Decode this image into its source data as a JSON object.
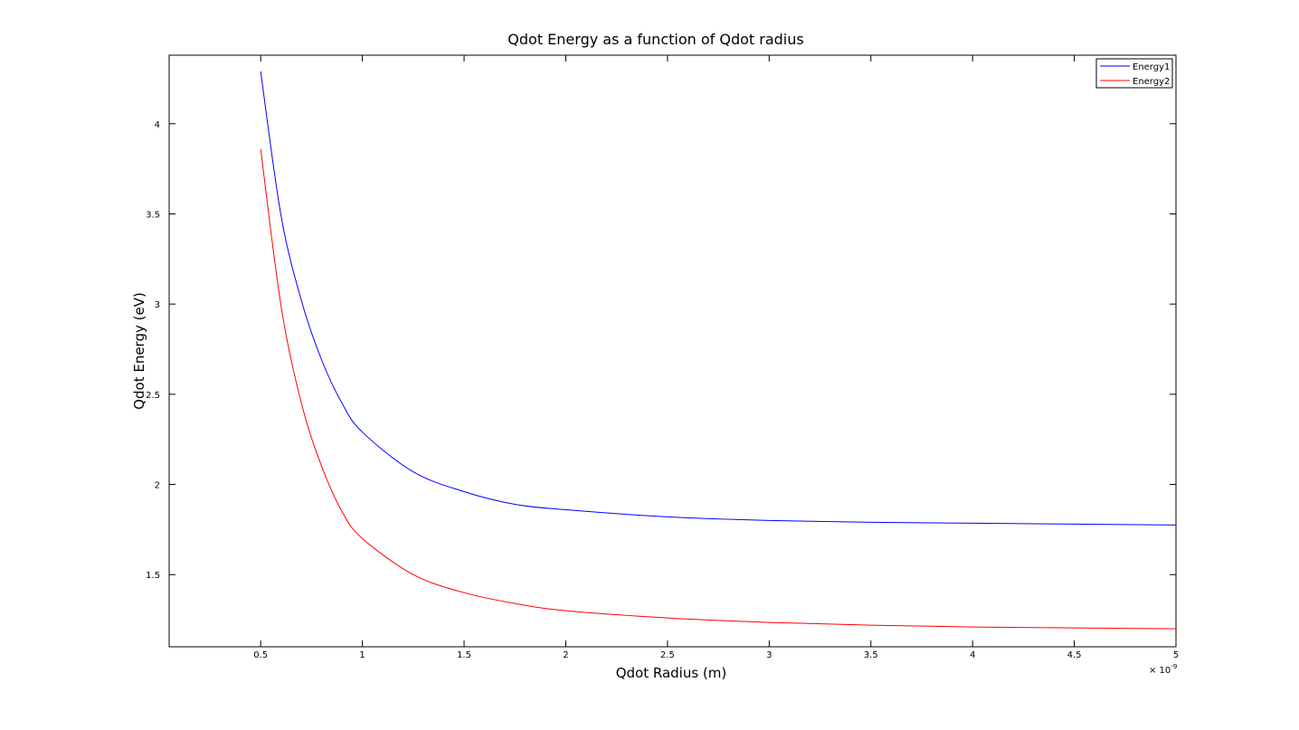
{
  "chart_data": {
    "type": "line",
    "title": "Qdot Energy as a function of Qdot radius",
    "xlabel": "Qdot Radius (m)",
    "ylabel": "Qdot Energy (eV)",
    "x_multiplier_label": "× 10",
    "x_multiplier_exponent": "-9",
    "xlim": [
      0.05,
      5
    ],
    "ylim": [
      1.1,
      4.38
    ],
    "x_ticks": [
      0.5,
      1,
      1.5,
      2,
      2.5,
      3,
      3.5,
      4,
      4.5,
      5
    ],
    "x_tick_labels": [
      "0.5",
      "1",
      "1.5",
      "2",
      "2.5",
      "3",
      "3.5",
      "4",
      "4.5",
      "5"
    ],
    "y_ticks": [
      1.5,
      2,
      2.5,
      3,
      3.5,
      4
    ],
    "y_tick_labels": [
      "1.5",
      "2",
      "2.5",
      "3",
      "3.5",
      "4"
    ],
    "legend_position": "top-right",
    "grid": false,
    "series": [
      {
        "name": "Energy1",
        "color": "#0000ff",
        "x": [
          0.5,
          0.6,
          0.7,
          0.8,
          0.9,
          1.0,
          1.25,
          1.5,
          1.75,
          2.0,
          2.5,
          3.0,
          3.5,
          4.0,
          4.5,
          5.0
        ],
        "y": [
          4.29,
          3.49,
          3.02,
          2.69,
          2.45,
          2.29,
          2.07,
          1.96,
          1.89,
          1.86,
          1.82,
          1.8,
          1.79,
          1.785,
          1.78,
          1.775
        ]
      },
      {
        "name": "Energy2",
        "color": "#ff0000",
        "x": [
          0.5,
          0.6,
          0.7,
          0.8,
          0.9,
          1.0,
          1.25,
          1.5,
          1.75,
          2.0,
          2.5,
          3.0,
          3.5,
          4.0,
          4.5,
          5.0
        ],
        "y": [
          3.86,
          2.99,
          2.45,
          2.1,
          1.85,
          1.7,
          1.5,
          1.4,
          1.34,
          1.3,
          1.26,
          1.235,
          1.22,
          1.21,
          1.205,
          1.2
        ]
      }
    ]
  }
}
